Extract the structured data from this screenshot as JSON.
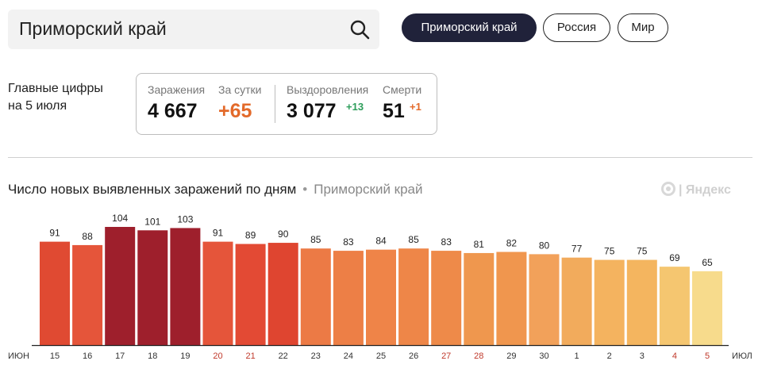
{
  "search": {
    "value": "Приморский край"
  },
  "regions": [
    {
      "label": "Приморский край",
      "active": true
    },
    {
      "label": "Россия",
      "active": false
    },
    {
      "label": "Мир",
      "active": false
    }
  ],
  "summary": {
    "heading_line1": "Главные цифры",
    "heading_line2": "на 5 июля",
    "infections_label": "Заражения",
    "infections_value": "4 667",
    "daily_label": "За сутки",
    "daily_value": "+65",
    "recovered_label": "Выздоровления",
    "recovered_value": "3 077",
    "recovered_delta": "+13",
    "deaths_label": "Смерти",
    "deaths_value": "51",
    "deaths_delta": "+1"
  },
  "colors": {
    "daily": "#e36a2a",
    "recovered_delta": "#2e9e5b",
    "deaths_delta": "#e36a2a",
    "weekend_tick": "#c0392b"
  },
  "chart_title": {
    "main": "Число новых выявленных заражений по дням",
    "separator": "•",
    "region": "Приморский край"
  },
  "logo": {
    "text": "| Яндекс"
  },
  "chart_data": {
    "type": "bar",
    "categories": [
      "15",
      "16",
      "17",
      "18",
      "19",
      "20",
      "21",
      "22",
      "23",
      "24",
      "25",
      "26",
      "27",
      "28",
      "29",
      "30",
      "1",
      "2",
      "3",
      "4",
      "5"
    ],
    "values": [
      91,
      88,
      104,
      101,
      103,
      91,
      89,
      90,
      85,
      83,
      84,
      85,
      83,
      81,
      82,
      80,
      77,
      75,
      75,
      69,
      65
    ],
    "weekend": [
      false,
      false,
      false,
      false,
      false,
      true,
      true,
      false,
      false,
      false,
      false,
      false,
      true,
      true,
      false,
      false,
      false,
      false,
      false,
      true,
      true
    ],
    "colors": [
      "#e04a32",
      "#e5553a",
      "#9e1f2c",
      "#9e1f2c",
      "#9e1f2c",
      "#e5553a",
      "#e34a34",
      "#df4530",
      "#ec7a45",
      "#ed7f46",
      "#ef8448",
      "#ee8648",
      "#ee8a49",
      "#ef974e",
      "#f0964e",
      "#f2a15a",
      "#f2ab5c",
      "#f4b35f",
      "#f4b55f",
      "#f5c670",
      "#f7db8c"
    ],
    "x_start_label": "ИЮН",
    "x_end_label": "ИЮЛ",
    "ylim": [
      0,
      104
    ]
  }
}
